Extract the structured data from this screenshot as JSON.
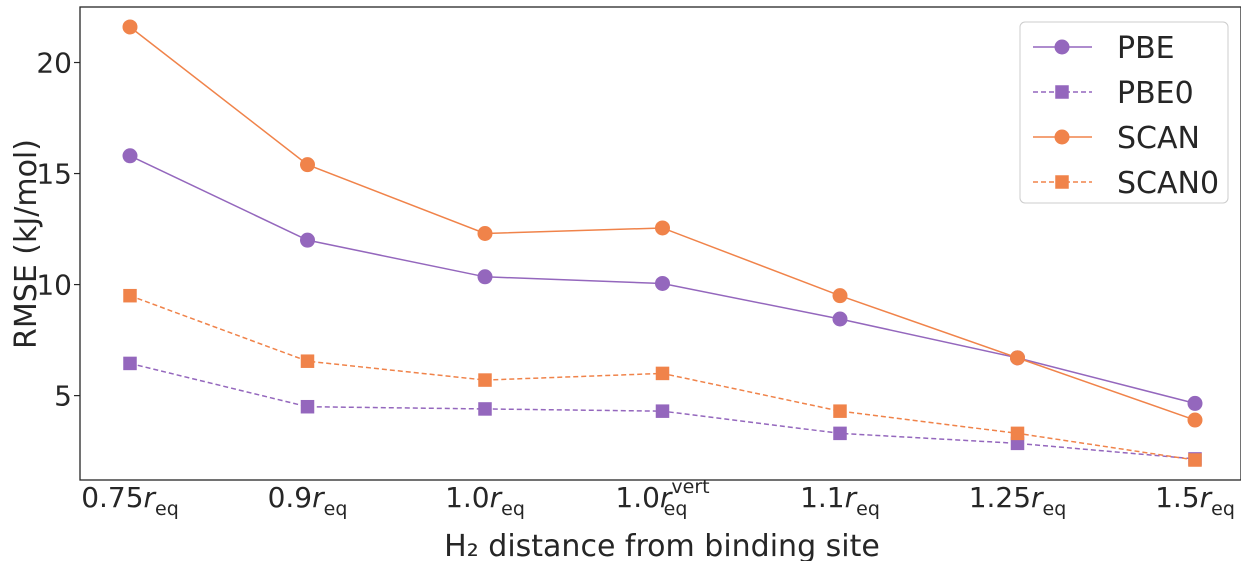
{
  "chart_data": {
    "type": "line",
    "xlabel": "H₂ distance from binding site",
    "ylabel": "RMSE (kJ/mol)",
    "categories": [
      {
        "base": "0.75",
        "sym": "r",
        "sub": "eq",
        "sup": ""
      },
      {
        "base": "0.9",
        "sym": "r",
        "sub": "eq",
        "sup": ""
      },
      {
        "base": "1.0",
        "sym": "r",
        "sub": "eq",
        "sup": ""
      },
      {
        "base": "1.0",
        "sym": "r",
        "sub": "eq",
        "sup": "vert"
      },
      {
        "base": "1.1",
        "sym": "r",
        "sub": "eq",
        "sup": ""
      },
      {
        "base": "1.25",
        "sym": "r",
        "sub": "eq",
        "sup": ""
      },
      {
        "base": "1.5",
        "sym": "r",
        "sub": "eq",
        "sup": ""
      }
    ],
    "yticks": [
      5,
      10,
      15,
      20
    ],
    "ylim": [
      1.2,
      22.5
    ],
    "grid": false,
    "legend_position": "top-right",
    "series": [
      {
        "name": "PBE",
        "color": "#9467bd",
        "marker": "circle",
        "linestyle": "solid",
        "values": [
          15.8,
          12.0,
          10.35,
          10.05,
          8.45,
          6.7,
          4.65
        ]
      },
      {
        "name": "PBE0",
        "color": "#9467bd",
        "marker": "square",
        "linestyle": "dashed",
        "values": [
          6.45,
          4.5,
          4.4,
          4.3,
          3.3,
          2.85,
          2.15
        ]
      },
      {
        "name": "SCAN",
        "color": "#f0834a",
        "marker": "circle",
        "linestyle": "solid",
        "values": [
          21.6,
          15.4,
          12.3,
          12.55,
          9.5,
          6.7,
          3.9
        ]
      },
      {
        "name": "SCAN0",
        "color": "#f0834a",
        "marker": "square",
        "linestyle": "dashed",
        "values": [
          9.5,
          6.55,
          5.7,
          6.0,
          4.3,
          3.3,
          2.1
        ]
      }
    ]
  }
}
